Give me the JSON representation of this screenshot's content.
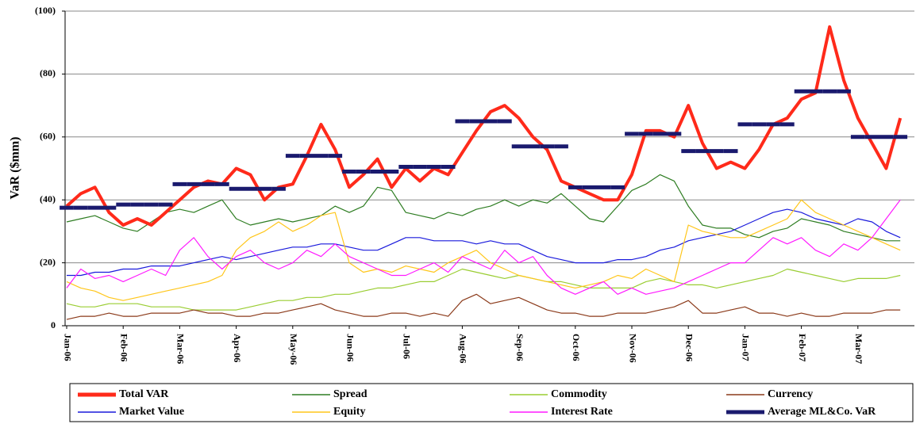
{
  "chart_data": {
    "type": "line",
    "y_label": "VaR ($mm)",
    "grid": true,
    "legend": "bottom",
    "ylim": [
      0,
      100
    ],
    "yticks": [
      0,
      {
        "value": 20,
        "label": "(20)"
      },
      {
        "value": 40,
        "label": "(40)"
      },
      {
        "value": 60,
        "label": "(60)"
      },
      {
        "value": 80,
        "label": "(80)"
      },
      {
        "value": 100,
        "label": "(100)"
      }
    ],
    "categories": [
      "Jan-06",
      null,
      null,
      null,
      "Feb-06",
      null,
      null,
      null,
      "Mar-06",
      null,
      null,
      null,
      "Apr-06",
      null,
      null,
      null,
      "May-06",
      null,
      null,
      null,
      "Jun-06",
      null,
      null,
      null,
      "Jul-06",
      null,
      null,
      null,
      "Aug-06",
      null,
      null,
      null,
      "Sep-06",
      null,
      null,
      null,
      "Oct-06",
      null,
      null,
      null,
      "Nov-06",
      null,
      null,
      null,
      "Dec-06",
      null,
      null,
      null,
      "Jan-07",
      null,
      null,
      null,
      "Feb-07",
      null,
      null,
      null,
      "Mar-07",
      null,
      null,
      null
    ],
    "series": [
      {
        "name": "Total VAR",
        "color": "#ff2a1a",
        "style": "bold",
        "values": [
          38,
          42,
          44,
          36,
          32,
          34,
          32,
          36,
          40,
          44,
          46,
          45,
          50,
          48,
          40,
          44,
          45,
          54,
          64,
          56,
          44,
          48,
          53,
          44,
          50,
          46,
          50,
          48,
          55,
          62,
          68,
          70,
          66,
          60,
          56,
          46,
          44,
          42,
          40,
          40,
          48,
          62,
          62,
          60,
          70,
          58,
          50,
          52,
          50,
          56,
          64,
          66,
          72,
          74,
          95,
          78,
          66,
          58,
          50,
          66
        ]
      },
      {
        "name": "Spread",
        "color": "#2e7d22",
        "values": [
          33,
          34,
          35,
          33,
          31,
          30,
          33,
          36,
          37,
          36,
          38,
          40,
          34,
          32,
          33,
          34,
          33,
          34,
          35,
          38,
          36,
          38,
          44,
          43,
          36,
          35,
          34,
          36,
          35,
          37,
          38,
          40,
          38,
          40,
          39,
          42,
          38,
          34,
          33,
          38,
          43,
          45,
          48,
          46,
          38,
          32,
          31,
          31,
          29,
          28,
          30,
          31,
          34,
          33,
          32,
          30,
          29,
          28,
          27,
          27
        ]
      },
      {
        "name": "Commodity",
        "color": "#9acd32",
        "values": [
          7,
          6,
          6,
          7,
          7,
          7,
          6,
          6,
          6,
          5,
          5,
          5,
          5,
          6,
          7,
          8,
          8,
          9,
          9,
          10,
          10,
          11,
          12,
          12,
          13,
          14,
          14,
          16,
          18,
          17,
          16,
          15,
          16,
          15,
          14,
          14,
          13,
          12,
          12,
          12,
          12,
          14,
          15,
          14,
          13,
          13,
          12,
          13,
          14,
          15,
          16,
          18,
          17,
          16,
          15,
          14,
          15,
          15,
          15,
          16
        ]
      },
      {
        "name": "Currency",
        "color": "#8b3a1a",
        "values": [
          2,
          3,
          3,
          4,
          3,
          3,
          4,
          4,
          4,
          5,
          4,
          4,
          3,
          3,
          4,
          4,
          5,
          6,
          7,
          5,
          4,
          3,
          3,
          4,
          4,
          3,
          4,
          3,
          8,
          10,
          7,
          8,
          9,
          7,
          5,
          4,
          4,
          3,
          3,
          4,
          4,
          4,
          5,
          6,
          8,
          4,
          4,
          5,
          6,
          4,
          4,
          3,
          4,
          3,
          3,
          4,
          4,
          4,
          5,
          5
        ]
      },
      {
        "name": "Market Value",
        "color": "#1a1adc",
        "values": [
          16,
          16,
          17,
          17,
          18,
          18,
          19,
          19,
          19,
          20,
          21,
          22,
          21,
          22,
          23,
          24,
          25,
          25,
          26,
          26,
          25,
          24,
          24,
          26,
          28,
          28,
          27,
          27,
          27,
          26,
          27,
          26,
          26,
          24,
          22,
          21,
          20,
          20,
          20,
          21,
          21,
          22,
          24,
          25,
          27,
          28,
          29,
          30,
          32,
          34,
          36,
          37,
          36,
          34,
          33,
          32,
          34,
          33,
          30,
          28
        ]
      },
      {
        "name": "Equity",
        "color": "#ffc61a",
        "values": [
          14,
          12,
          11,
          9,
          8,
          9,
          10,
          11,
          12,
          13,
          14,
          16,
          24,
          28,
          30,
          33,
          30,
          32,
          35,
          36,
          20,
          17,
          18,
          17,
          19,
          18,
          17,
          20,
          22,
          24,
          20,
          18,
          16,
          15,
          14,
          13,
          12,
          13,
          14,
          16,
          15,
          18,
          16,
          14,
          32,
          30,
          29,
          28,
          28,
          30,
          32,
          34,
          40,
          36,
          34,
          32,
          30,
          28,
          26,
          24
        ]
      },
      {
        "name": "Interest Rate",
        "color": "#ff1aff",
        "values": [
          12,
          18,
          15,
          16,
          14,
          16,
          18,
          16,
          24,
          28,
          22,
          18,
          22,
          24,
          20,
          18,
          20,
          24,
          22,
          26,
          22,
          20,
          18,
          16,
          16,
          18,
          20,
          17,
          22,
          20,
          18,
          24,
          20,
          22,
          16,
          12,
          10,
          12,
          14,
          10,
          12,
          10,
          11,
          12,
          14,
          16,
          18,
          20,
          20,
          24,
          28,
          26,
          28,
          24,
          22,
          26,
          24,
          28,
          34,
          40
        ]
      },
      {
        "name": "Average ML&Co. VaR",
        "color": "#1a1a6e",
        "style": "step",
        "values": [
          37.5,
          37.5,
          37.5,
          37.5,
          38.5,
          38.5,
          38.5,
          38.5,
          45,
          45,
          45,
          45,
          43.5,
          43.5,
          43.5,
          43.5,
          54,
          54,
          54,
          54,
          49,
          49,
          49,
          49,
          50.5,
          50.5,
          50.5,
          50.5,
          65,
          65,
          65,
          65,
          57,
          57,
          57,
          57,
          44,
          44,
          44,
          44,
          61,
          61,
          61,
          61,
          55.5,
          55.5,
          55.5,
          55.5,
          64,
          64,
          64,
          64,
          74.5,
          74.5,
          74.5,
          74.5,
          60,
          60,
          60,
          60
        ]
      }
    ]
  }
}
